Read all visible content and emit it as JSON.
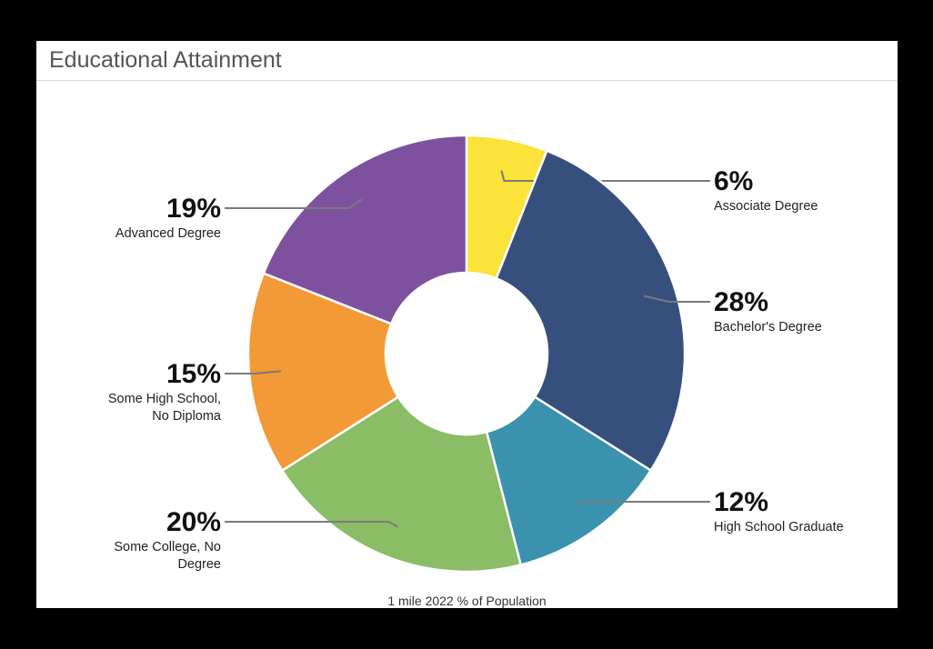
{
  "panel": {
    "title": "Educational Attainment"
  },
  "chart_data": {
    "type": "pie",
    "donut": true,
    "title": "Educational Attainment",
    "subtitle": "1 mile 2022 % of Population",
    "legend": "none",
    "slices": [
      {
        "label": "Associate Degree",
        "value": 6,
        "value_label": "6%",
        "color": "#FBE33A",
        "label_lines": [
          "Associate Degree"
        ]
      },
      {
        "label": "Bachelor's Degree",
        "value": 28,
        "value_label": "28%",
        "color": "#374F7D",
        "label_lines": [
          "Bachelor's Degree"
        ]
      },
      {
        "label": "High School Graduate",
        "value": 12,
        "value_label": "12%",
        "color": "#3A92AE",
        "label_lines": [
          "High School Graduate"
        ]
      },
      {
        "label": "Some College, No Degree",
        "value": 20,
        "value_label": "20%",
        "color": "#8BBC66",
        "label_lines": [
          "Some College, No",
          "Degree"
        ]
      },
      {
        "label": "Some High School, No Diploma",
        "value": 15,
        "value_label": "15%",
        "color": "#F29A37",
        "label_lines": [
          "Some High School,",
          "No Diploma"
        ]
      },
      {
        "label": "Advanced Degree",
        "value": 19,
        "value_label": "19%",
        "color": "#7E519F",
        "label_lines": [
          "Advanced Degree"
        ]
      }
    ]
  }
}
